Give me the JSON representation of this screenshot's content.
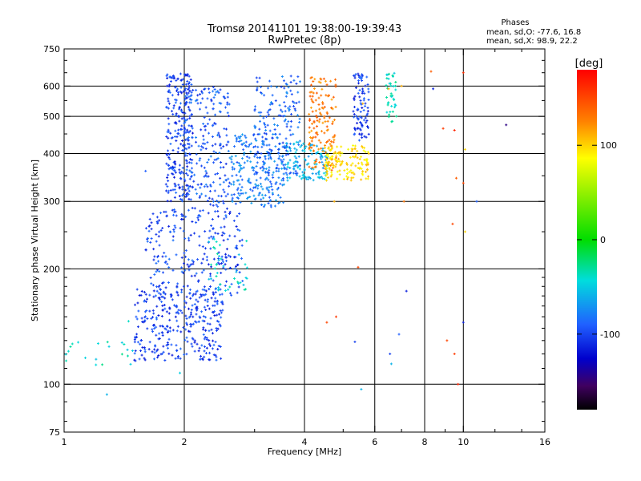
{
  "header": {
    "title_line1": "Tromsø 20141101 19:38:00-19:39:43",
    "title_line2": "RwPretec (8p)"
  },
  "stats": {
    "heading": "Phases",
    "line_o": "mean, sd,O: -77.6, 16.8",
    "line_x": "mean, sd,X:  98.9, 22.2"
  },
  "colorbar": {
    "unit_label": "[deg]",
    "range": [
      -180,
      180
    ],
    "ticks": [
      {
        "value": 100,
        "label": "100"
      },
      {
        "value": 0,
        "label": "0"
      },
      {
        "value": -100,
        "label": "-100"
      }
    ]
  },
  "chart_data": {
    "type": "scatter",
    "title": "Tromsø 20141101 19:38:00-19:39:43",
    "subtitle": "RwPretec (8p)",
    "xlabel": "Frequency [MHz]",
    "ylabel": "Stationary phase Virtual Height [km]",
    "x_scale": "log2",
    "y_scale": "log",
    "xlim": [
      1,
      16
    ],
    "ylim": [
      75,
      750
    ],
    "x_ticks": [
      {
        "value": 1,
        "label": "1"
      },
      {
        "value": 2,
        "label": "2"
      },
      {
        "value": 4,
        "label": "4"
      },
      {
        "value": 6,
        "label": "6"
      },
      {
        "value": 8,
        "label": "8"
      },
      {
        "value": 10,
        "label": "10"
      },
      {
        "value": 16,
        "label": "16"
      }
    ],
    "y_ticks": [
      {
        "value": 75,
        "label": "75"
      },
      {
        "value": 100,
        "label": "100"
      },
      {
        "value": 200,
        "label": "200"
      },
      {
        "value": 300,
        "label": "300"
      },
      {
        "value": 400,
        "label": "400"
      },
      {
        "value": 500,
        "label": "500"
      },
      {
        "value": 600,
        "label": "600"
      },
      {
        "value": 750,
        "label": "750"
      }
    ],
    "vertical_gridlines": [
      2,
      4,
      6,
      8,
      10
    ],
    "horizontal_gridlines": [
      100,
      200,
      300,
      400,
      500,
      600
    ],
    "color_variable": "phase [deg]",
    "clusters": [
      {
        "x_range": [
          1.5,
          2.5
        ],
        "y_range": [
          115,
          180
        ],
        "phase_mean": -100,
        "count": 320
      },
      {
        "x_range": [
          1.6,
          2.8
        ],
        "y_range": [
          170,
          290
        ],
        "phase_mean": -97,
        "count": 260
      },
      {
        "x_range": [
          1.8,
          2.1
        ],
        "y_range": [
          300,
          650
        ],
        "phase_mean": -100,
        "count": 260
      },
      {
        "x_range": [
          2.0,
          2.6
        ],
        "y_range": [
          290,
          600
        ],
        "phase_mean": -92,
        "count": 200
      },
      {
        "x_range": [
          2.6,
          3.6
        ],
        "y_range": [
          290,
          450
        ],
        "phase_mean": -80,
        "count": 220
      },
      {
        "x_range": [
          3.0,
          3.9
        ],
        "y_range": [
          350,
          640
        ],
        "phase_mean": -88,
        "count": 180
      },
      {
        "x_range": [
          3.6,
          4.6
        ],
        "y_range": [
          340,
          430
        ],
        "phase_mean": -60,
        "count": 120
      },
      {
        "x_range": [
          4.1,
          4.8
        ],
        "y_range": [
          360,
          640
        ],
        "phase_mean": 128,
        "count": 140
      },
      {
        "x_range": [
          4.5,
          5.8
        ],
        "y_range": [
          340,
          420
        ],
        "phase_mean": 95,
        "count": 140
      },
      {
        "x_range": [
          5.3,
          5.8
        ],
        "y_range": [
          430,
          650
        ],
        "phase_mean": -100,
        "count": 90
      },
      {
        "x_range": [
          6.4,
          6.8
        ],
        "y_range": [
          480,
          650
        ],
        "phase_mean": -40,
        "count": 40
      },
      {
        "x_range": [
          1.0,
          1.5
        ],
        "y_range": [
          112,
          130
        ],
        "phase_mean": -40,
        "count": 20
      },
      {
        "x_range": [
          2.3,
          2.9
        ],
        "y_range": [
          175,
          240
        ],
        "phase_mean": -45,
        "count": 40
      }
    ],
    "isolated_points": [
      {
        "x": 1.28,
        "y": 94,
        "phase": -60
      },
      {
        "x": 1.95,
        "y": 107,
        "phase": -50
      },
      {
        "x": 1.45,
        "y": 146,
        "phase": -40
      },
      {
        "x": 1.6,
        "y": 360,
        "phase": -90
      },
      {
        "x": 4.8,
        "y": 150,
        "phase": 155
      },
      {
        "x": 4.55,
        "y": 145,
        "phase": 150
      },
      {
        "x": 5.45,
        "y": 202,
        "phase": 150
      },
      {
        "x": 5.55,
        "y": 97,
        "phase": -60
      },
      {
        "x": 6.9,
        "y": 135,
        "phase": -90
      },
      {
        "x": 5.35,
        "y": 129,
        "phase": -100
      },
      {
        "x": 6.55,
        "y": 120,
        "phase": -100
      },
      {
        "x": 6.6,
        "y": 113,
        "phase": -60
      },
      {
        "x": 7.2,
        "y": 175,
        "phase": -110
      },
      {
        "x": 7.1,
        "y": 300,
        "phase": 130
      },
      {
        "x": 8.3,
        "y": 655,
        "phase": 140
      },
      {
        "x": 8.4,
        "y": 590,
        "phase": -110
      },
      {
        "x": 8.9,
        "y": 465,
        "phase": 155
      },
      {
        "x": 9.5,
        "y": 460,
        "phase": 165
      },
      {
        "x": 9.6,
        "y": 345,
        "phase": 140
      },
      {
        "x": 9.4,
        "y": 262,
        "phase": 150
      },
      {
        "x": 9.5,
        "y": 120,
        "phase": 155
      },
      {
        "x": 9.1,
        "y": 130,
        "phase": 150
      },
      {
        "x": 9.7,
        "y": 100,
        "phase": 165
      },
      {
        "x": 10.0,
        "y": 650,
        "phase": 160
      },
      {
        "x": 10.1,
        "y": 410,
        "phase": 100
      },
      {
        "x": 10.0,
        "y": 335,
        "phase": 150
      },
      {
        "x": 10.1,
        "y": 250,
        "phase": 100
      },
      {
        "x": 10.0,
        "y": 145,
        "phase": -110
      },
      {
        "x": 10.8,
        "y": 300,
        "phase": -90
      },
      {
        "x": 12.8,
        "y": 475,
        "phase": -140
      },
      {
        "x": 7.0,
        "y": 600,
        "phase": 110
      },
      {
        "x": 4.75,
        "y": 300,
        "phase": 110
      },
      {
        "x": 5.6,
        "y": 540,
        "phase": 110
      },
      {
        "x": 6.5,
        "y": 590,
        "phase": 110
      }
    ]
  }
}
